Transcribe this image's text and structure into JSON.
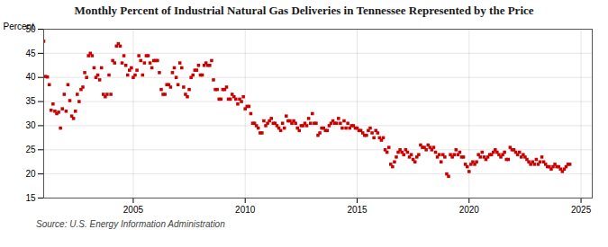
{
  "chart_data": {
    "type": "scatter",
    "title": "Monthly Percent of Industrial Natural Gas Deliveries in Tennessee Represented by the Price",
    "ylabel": "Percent",
    "source": "Source: U.S. Energy Information Administration",
    "color": "#cc0000",
    "marker": "square",
    "grid": true,
    "xlim": [
      2001.0,
      2025.5
    ],
    "ylim": [
      15,
      50
    ],
    "xticks": [
      2005,
      2010,
      2015,
      2020,
      2025
    ],
    "yticks": [
      15,
      20,
      25,
      30,
      35,
      40,
      45,
      50
    ],
    "x": [
      2001.0,
      2001.083,
      2001.167,
      2001.25,
      2001.333,
      2001.417,
      2001.5,
      2001.583,
      2001.667,
      2001.75,
      2001.833,
      2001.917,
      2002.0,
      2002.083,
      2002.167,
      2002.25,
      2002.333,
      2002.417,
      2002.5,
      2002.583,
      2002.667,
      2002.75,
      2002.833,
      2002.917,
      2003.0,
      2003.083,
      2003.167,
      2003.25,
      2003.333,
      2003.417,
      2003.5,
      2003.583,
      2003.667,
      2003.75,
      2003.833,
      2003.917,
      2004.0,
      2004.083,
      2004.167,
      2004.25,
      2004.333,
      2004.417,
      2004.5,
      2004.583,
      2004.667,
      2004.75,
      2004.833,
      2004.917,
      2005.0,
      2005.083,
      2005.167,
      2005.25,
      2005.333,
      2005.417,
      2005.5,
      2005.583,
      2005.667,
      2005.75,
      2005.833,
      2005.917,
      2006.0,
      2006.083,
      2006.167,
      2006.25,
      2006.333,
      2006.417,
      2006.5,
      2006.583,
      2006.667,
      2006.75,
      2006.833,
      2006.917,
      2007.0,
      2007.083,
      2007.167,
      2007.25,
      2007.333,
      2007.417,
      2007.5,
      2007.583,
      2007.667,
      2007.75,
      2007.833,
      2007.917,
      2008.0,
      2008.083,
      2008.167,
      2008.25,
      2008.333,
      2008.417,
      2008.5,
      2008.583,
      2008.667,
      2008.75,
      2008.833,
      2008.917,
      2009.0,
      2009.083,
      2009.167,
      2009.25,
      2009.333,
      2009.417,
      2009.5,
      2009.583,
      2009.667,
      2009.75,
      2009.833,
      2009.917,
      2010.0,
      2010.083,
      2010.167,
      2010.25,
      2010.333,
      2010.417,
      2010.5,
      2010.583,
      2010.667,
      2010.75,
      2010.833,
      2010.917,
      2011.0,
      2011.083,
      2011.167,
      2011.25,
      2011.333,
      2011.417,
      2011.5,
      2011.583,
      2011.667,
      2011.75,
      2011.833,
      2011.917,
      2012.0,
      2012.083,
      2012.167,
      2012.25,
      2012.333,
      2012.417,
      2012.5,
      2012.583,
      2012.667,
      2012.75,
      2012.833,
      2012.917,
      2013.0,
      2013.083,
      2013.167,
      2013.25,
      2013.333,
      2013.417,
      2013.5,
      2013.583,
      2013.667,
      2013.75,
      2013.833,
      2013.917,
      2014.0,
      2014.083,
      2014.167,
      2014.25,
      2014.333,
      2014.417,
      2014.5,
      2014.583,
      2014.667,
      2014.75,
      2014.833,
      2014.917,
      2015.0,
      2015.083,
      2015.167,
      2015.25,
      2015.333,
      2015.417,
      2015.5,
      2015.583,
      2015.667,
      2015.75,
      2015.833,
      2015.917,
      2016.0,
      2016.083,
      2016.167,
      2016.25,
      2016.333,
      2016.417,
      2016.5,
      2016.583,
      2016.667,
      2016.75,
      2016.833,
      2016.917,
      2017.0,
      2017.083,
      2017.167,
      2017.25,
      2017.333,
      2017.417,
      2017.5,
      2017.583,
      2017.667,
      2017.75,
      2017.833,
      2017.917,
      2018.0,
      2018.083,
      2018.167,
      2018.25,
      2018.333,
      2018.417,
      2018.5,
      2018.583,
      2018.667,
      2018.75,
      2018.833,
      2018.917,
      2019.0,
      2019.083,
      2019.167,
      2019.25,
      2019.333,
      2019.417,
      2019.5,
      2019.583,
      2019.667,
      2019.75,
      2019.833,
      2019.917,
      2020.0,
      2020.083,
      2020.167,
      2020.25,
      2020.333,
      2020.417,
      2020.5,
      2020.583,
      2020.667,
      2020.75,
      2020.833,
      2020.917,
      2021.0,
      2021.083,
      2021.167,
      2021.25,
      2021.333,
      2021.417,
      2021.5,
      2021.583,
      2021.667,
      2021.75,
      2021.833,
      2021.917,
      2022.0,
      2022.083,
      2022.167,
      2022.25,
      2022.333,
      2022.417,
      2022.5,
      2022.583,
      2022.667,
      2022.75,
      2022.833,
      2022.917,
      2023.0,
      2023.083,
      2023.167,
      2023.25,
      2023.333,
      2023.417,
      2023.5,
      2023.583,
      2023.667,
      2023.75,
      2023.833,
      2023.917,
      2024.0,
      2024.083,
      2024.167,
      2024.25,
      2024.333,
      2024.417,
      2024.5
    ],
    "values": [
      47.5,
      40.2,
      40.1,
      38.5,
      33.2,
      34.5,
      33.0,
      32.5,
      32.8,
      29.5,
      33.5,
      36.5,
      33.0,
      38.5,
      35.2,
      32.0,
      31.5,
      33.0,
      36.5,
      35.0,
      37.5,
      38.0,
      41.0,
      40.0,
      44.5,
      45.0,
      44.5,
      42.0,
      40.0,
      40.5,
      39.5,
      42.0,
      36.5,
      36.0,
      36.5,
      40.5,
      36.5,
      43.5,
      43.0,
      46.5,
      47.0,
      46.5,
      43.0,
      44.5,
      42.5,
      40.5,
      41.5,
      42.0,
      40.0,
      40.5,
      41.5,
      44.5,
      43.5,
      40.5,
      43.0,
      44.5,
      44.5,
      43.0,
      42.0,
      43.5,
      43.5,
      43.5,
      41.0,
      37.5,
      36.5,
      36.5,
      38.5,
      38.5,
      38.0,
      41.0,
      42.0,
      40.0,
      38.5,
      43.0,
      42.0,
      38.0,
      36.5,
      36.0,
      37.5,
      40.0,
      40.5,
      41.5,
      41.5,
      42.5,
      40.5,
      40.5,
      42.5,
      43.0,
      42.5,
      42.5,
      43.5,
      39.5,
      37.5,
      37.5,
      35.5,
      35.5,
      37.5,
      37.5,
      38.0,
      35.5,
      35.5,
      36.5,
      36.0,
      35.5,
      34.5,
      35.5,
      35.0,
      36.0,
      33.5,
      34.0,
      34.0,
      32.5,
      30.5,
      30.5,
      30.0,
      29.5,
      28.5,
      28.5,
      31.0,
      30.0,
      30.5,
      31.0,
      31.5,
      30.5,
      30.5,
      30.0,
      29.5,
      29.0,
      30.5,
      29.5,
      32.0,
      31.0,
      31.0,
      30.5,
      31.0,
      30.5,
      29.5,
      29.0,
      30.0,
      30.0,
      30.5,
      30.0,
      31.5,
      30.5,
      32.5,
      30.5,
      30.5,
      28.0,
      28.5,
      29.5,
      29.5,
      29.0,
      29.0,
      30.0,
      30.5,
      31.0,
      30.5,
      30.5,
      31.5,
      30.5,
      29.5,
      31.0,
      29.5,
      30.5,
      29.5,
      30.0,
      30.0,
      29.5,
      29.5,
      29.0,
      29.0,
      28.5,
      28.0,
      28.0,
      29.0,
      29.5,
      28.5,
      27.5,
      29.0,
      28.5,
      27.5,
      27.0,
      27.5,
      25.0,
      24.5,
      25.5,
      22.0,
      21.5,
      22.5,
      23.5,
      24.5,
      25.0,
      24.5,
      24.0,
      25.0,
      24.5,
      23.5,
      24.0,
      23.0,
      22.5,
      23.5,
      24.0,
      26.0,
      25.5,
      25.5,
      25.0,
      26.0,
      25.5,
      25.0,
      25.5,
      24.5,
      23.5,
      24.0,
      22.5,
      24.0,
      23.5,
      20.0,
      19.5,
      24.0,
      23.5,
      24.0,
      25.0,
      24.0,
      24.5,
      23.5,
      23.5,
      22.0,
      21.5,
      20.5,
      22.0,
      22.5,
      22.0,
      22.5,
      24.0,
      23.5,
      24.5,
      23.5,
      23.0,
      23.5,
      24.0,
      24.0,
      24.5,
      25.0,
      24.5,
      24.0,
      23.5,
      24.0,
      24.5,
      23.0,
      23.0,
      25.5,
      25.0,
      25.0,
      24.5,
      24.0,
      24.5,
      23.5,
      24.0,
      23.5,
      23.0,
      22.5,
      22.0,
      22.5,
      22.0,
      23.0,
      22.0,
      22.5,
      23.5,
      22.5,
      22.0,
      21.5,
      21.5,
      21.0,
      21.5,
      22.0,
      21.5,
      21.5,
      21.0,
      20.5,
      21.0,
      21.5,
      22.0,
      22.0
    ]
  }
}
